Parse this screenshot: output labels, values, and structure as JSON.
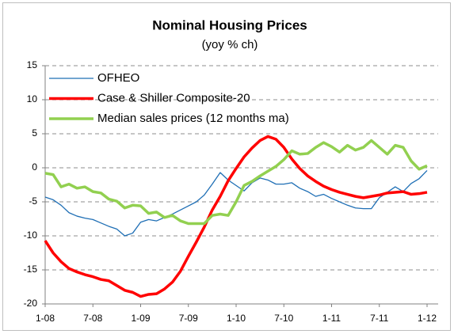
{
  "chart_data": {
    "type": "line",
    "title": "Nominal Housing Prices",
    "subtitle": "(yoy % ch)",
    "categories": [
      "1-08",
      null,
      null,
      null,
      null,
      null,
      "7-08",
      null,
      null,
      null,
      null,
      null,
      "1-09",
      null,
      null,
      null,
      null,
      null,
      "7-09",
      null,
      null,
      null,
      null,
      null,
      "1-10",
      null,
      null,
      null,
      null,
      null,
      "7-10",
      null,
      null,
      null,
      null,
      null,
      "1-11",
      null,
      null,
      null,
      null,
      null,
      "7-11",
      null,
      null,
      null,
      null,
      null,
      "1-12"
    ],
    "series": [
      {
        "name": "OFHEO",
        "color": "#1f6fb5",
        "width": 1.3,
        "values": [
          -4.3,
          -4.7,
          -5.5,
          -6.6,
          -7.1,
          -7.4,
          -7.6,
          -8.1,
          -8.6,
          -9.0,
          -10.0,
          -9.6,
          -8.0,
          -7.6,
          -7.8,
          -7.3,
          -6.8,
          -6.2,
          -5.6,
          -5.0,
          -4.0,
          -2.4,
          -0.7,
          -1.8,
          -2.6,
          -3.4,
          -2.2,
          -1.5,
          -1.8,
          -2.4,
          -2.4,
          -2.2,
          -3.0,
          -3.5,
          -4.2,
          -3.9,
          -4.5,
          -5.0,
          -5.5,
          -5.9,
          -6.0,
          -6.0,
          -4.4,
          -3.6,
          -2.8,
          -3.5,
          -2.3,
          -1.6,
          -0.4
        ]
      },
      {
        "name": "Case & Shiller Composite-20",
        "color": "#ff0000",
        "width": 3.5,
        "values": [
          -10.7,
          -12.5,
          -13.8,
          -14.8,
          -15.3,
          -15.7,
          -16.0,
          -16.4,
          -16.6,
          -17.3,
          -18.0,
          -18.3,
          -18.9,
          -18.6,
          -18.5,
          -17.8,
          -16.8,
          -15.2,
          -13.0,
          -10.9,
          -8.7,
          -6.2,
          -4.2,
          -1.9,
          -0.1,
          1.6,
          2.9,
          4.0,
          4.6,
          4.2,
          3.0,
          1.3,
          -0.1,
          -1.2,
          -2.0,
          -2.7,
          -3.2,
          -3.6,
          -3.9,
          -4.2,
          -4.4,
          -4.2,
          -4.0,
          -3.7,
          -3.6,
          -3.5,
          -3.9,
          -3.8,
          -3.6
        ]
      },
      {
        "name": "Median sales prices (12 months ma)",
        "color": "#92d050",
        "width": 3.5,
        "values": [
          -0.8,
          -1.0,
          -2.8,
          -2.4,
          -3.0,
          -2.8,
          -3.5,
          -3.7,
          -4.6,
          -4.9,
          -5.9,
          -5.5,
          -5.6,
          -6.7,
          -6.5,
          -7.3,
          -7.0,
          -7.8,
          -8.2,
          -8.2,
          -8.2,
          -7.0,
          -6.8,
          -7.0,
          -5.0,
          -2.6,
          -2.0,
          -1.2,
          -0.5,
          0.2,
          1.2,
          2.5,
          2.0,
          2.1,
          3.0,
          3.7,
          3.1,
          2.3,
          3.3,
          2.6,
          3.0,
          4.0,
          3.0,
          2.0,
          3.3,
          3.0,
          1.0,
          -0.2,
          0.3
        ]
      }
    ],
    "ylim": [
      -20,
      15
    ],
    "yticks": [
      -20,
      -15,
      -10,
      -5,
      0,
      5,
      10,
      15
    ],
    "grid": true,
    "legend": "top-left"
  }
}
